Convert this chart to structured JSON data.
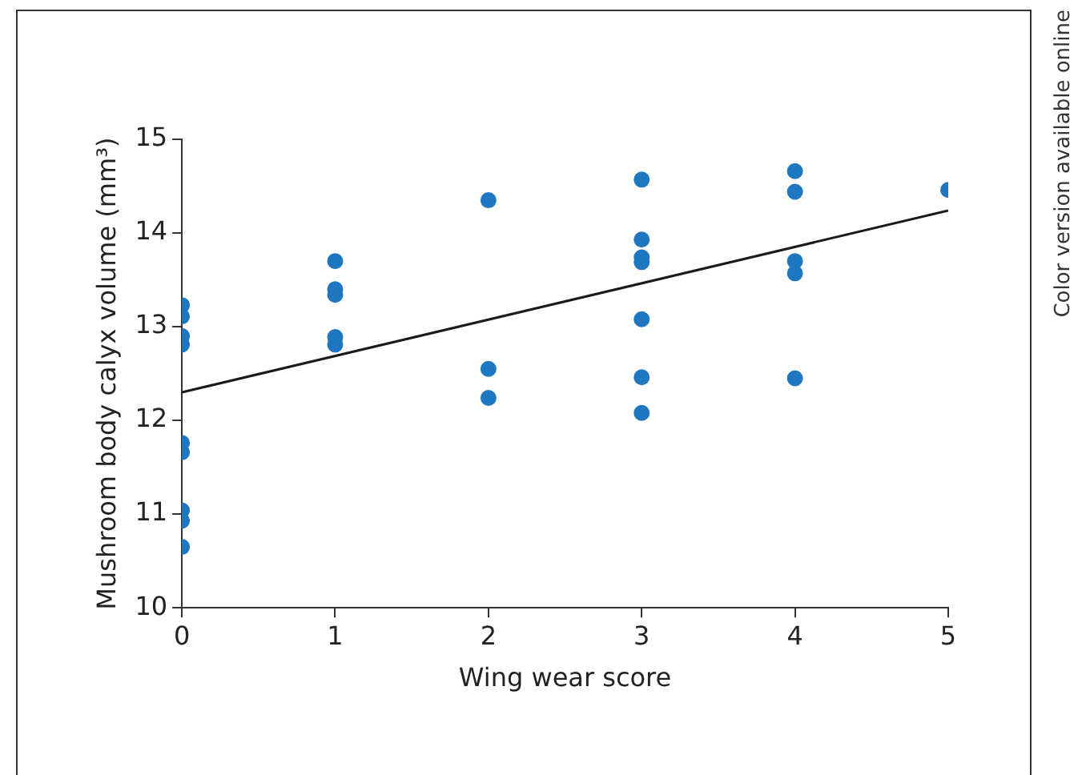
{
  "chart_data": {
    "type": "scatter",
    "xlabel": "Wing wear score",
    "ylabel": "Mushroom body calyx volume (mm³)",
    "annotations": [
      "Color version available online"
    ],
    "xlim": [
      0,
      5
    ],
    "xticks": [
      0,
      1,
      2,
      3,
      4,
      5
    ],
    "ylim": [
      10,
      15
    ],
    "yticks": [
      10,
      11,
      12,
      13,
      14,
      15
    ],
    "grid": false,
    "legend": false,
    "marker": "circle",
    "series": [
      {
        "color": "#1f77c0",
        "x": [
          0,
          0,
          0,
          0,
          0,
          0,
          0,
          0,
          0,
          1,
          1,
          1,
          1,
          1,
          2,
          2,
          2,
          3,
          3,
          3,
          3,
          3,
          3,
          3,
          4,
          4,
          4,
          4,
          4,
          5
        ],
        "values": [
          13.23,
          13.11,
          12.9,
          12.81,
          11.76,
          11.66,
          11.04,
          10.93,
          10.65,
          13.7,
          13.4,
          13.34,
          12.89,
          12.81,
          14.35,
          12.55,
          12.24,
          14.57,
          13.93,
          13.74,
          13.69,
          13.08,
          12.46,
          12.08,
          14.66,
          14.44,
          13.7,
          13.57,
          12.45,
          14.46
        ]
      },
      {
        "type": "line",
        "color": "#1a1a1a",
        "marker": "none",
        "x": [
          0,
          5
        ],
        "values": [
          12.3,
          14.24
        ]
      }
    ]
  }
}
